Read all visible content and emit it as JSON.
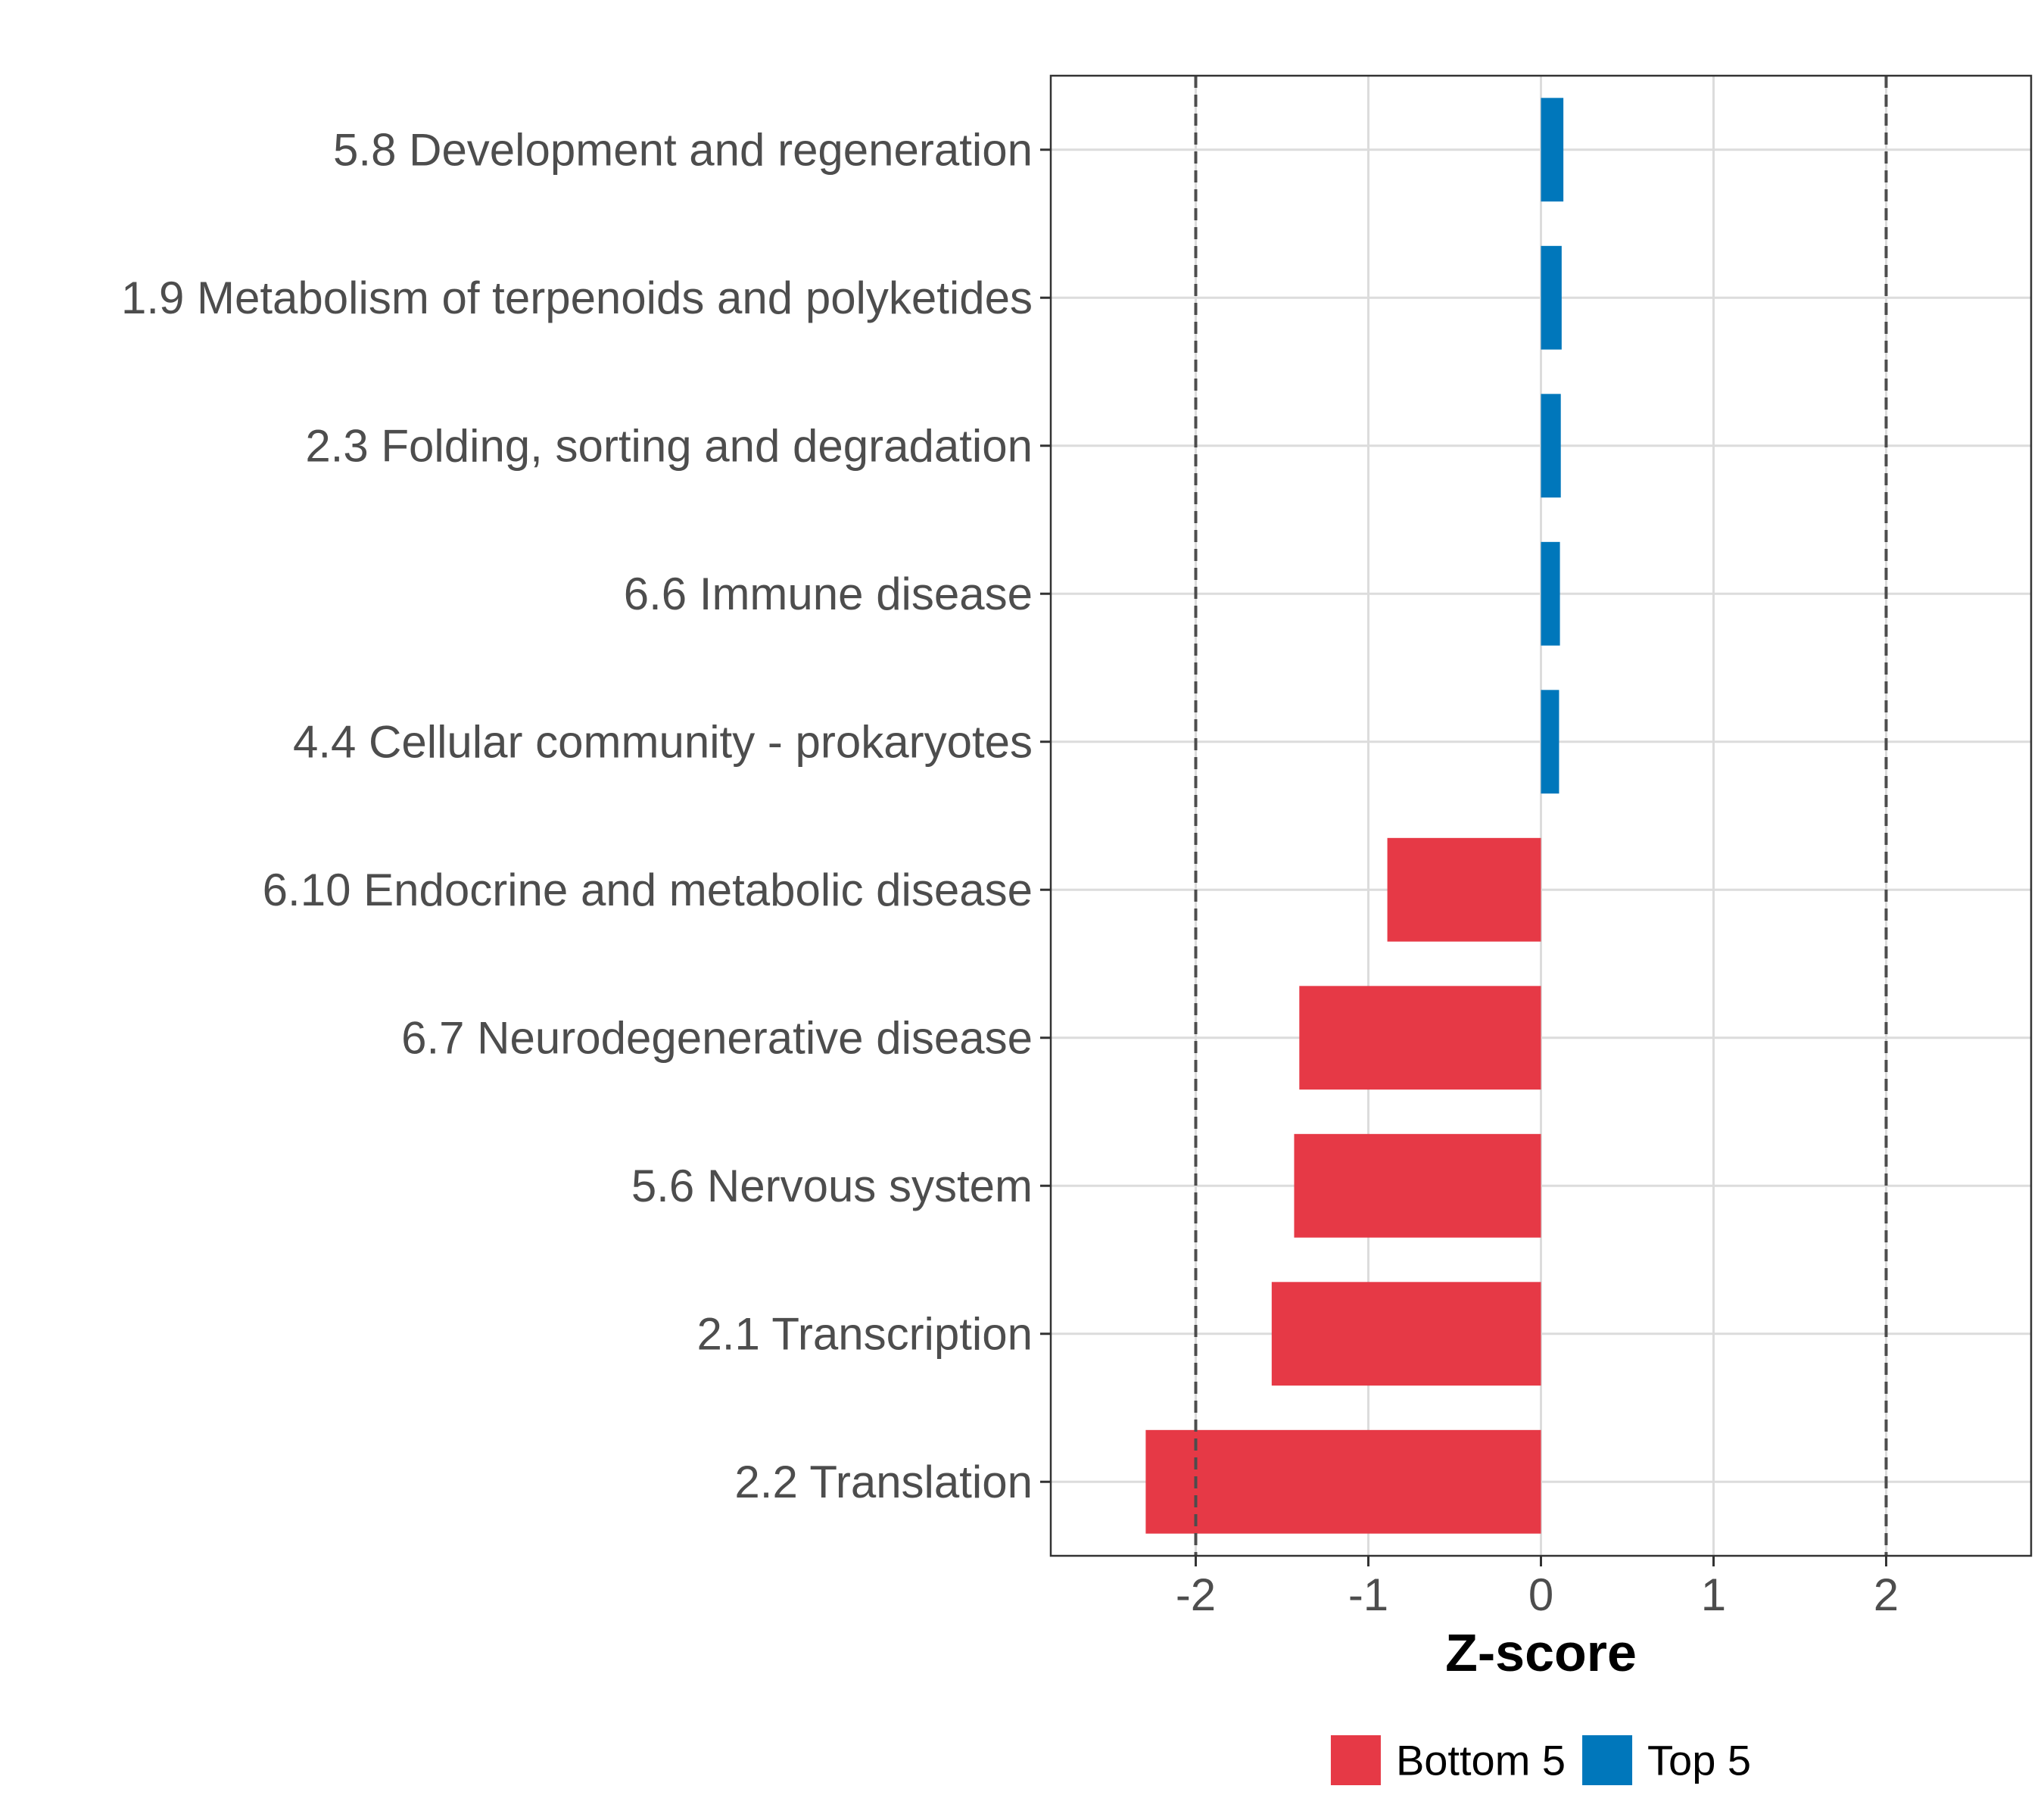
{
  "chart_data": {
    "type": "bar",
    "orientation": "horizontal",
    "title": "",
    "xlabel": "Z-score",
    "ylabel": "",
    "xlim": [
      -2.84,
      2.84
    ],
    "xticks": [
      -2,
      -1,
      0,
      1,
      2
    ],
    "xtick_labels": [
      "-2",
      "-1",
      "0",
      "1",
      "2"
    ],
    "reference_lines": [
      -2,
      2
    ],
    "grid": true,
    "categories": [
      "5.8 Development and regeneration",
      "1.9 Metabolism of terpenoids and polyketides",
      "2.3 Folding, sorting and degradation",
      "6.6 Immune disease",
      "4.4 Cellular community - prokaryotes",
      "6.10 Endocrine and metabolic disease",
      "6.7 Neurodegenerative disease",
      "5.6 Nervous system",
      "2.1 Transcription",
      "2.2 Translation"
    ],
    "values": [
      0.13,
      0.12,
      0.115,
      0.11,
      0.105,
      -0.89,
      -1.4,
      -1.43,
      -1.56,
      -2.29
    ],
    "groups": [
      "Top 5",
      "Top 5",
      "Top 5",
      "Top 5",
      "Top 5",
      "Bottom 5",
      "Bottom 5",
      "Bottom 5",
      "Bottom 5",
      "Bottom 5"
    ],
    "legend": [
      {
        "name": "Bottom 5",
        "color": "#e63946"
      },
      {
        "name": "Top 5",
        "color": "#0077bb"
      }
    ],
    "legend_position": "bottom"
  }
}
